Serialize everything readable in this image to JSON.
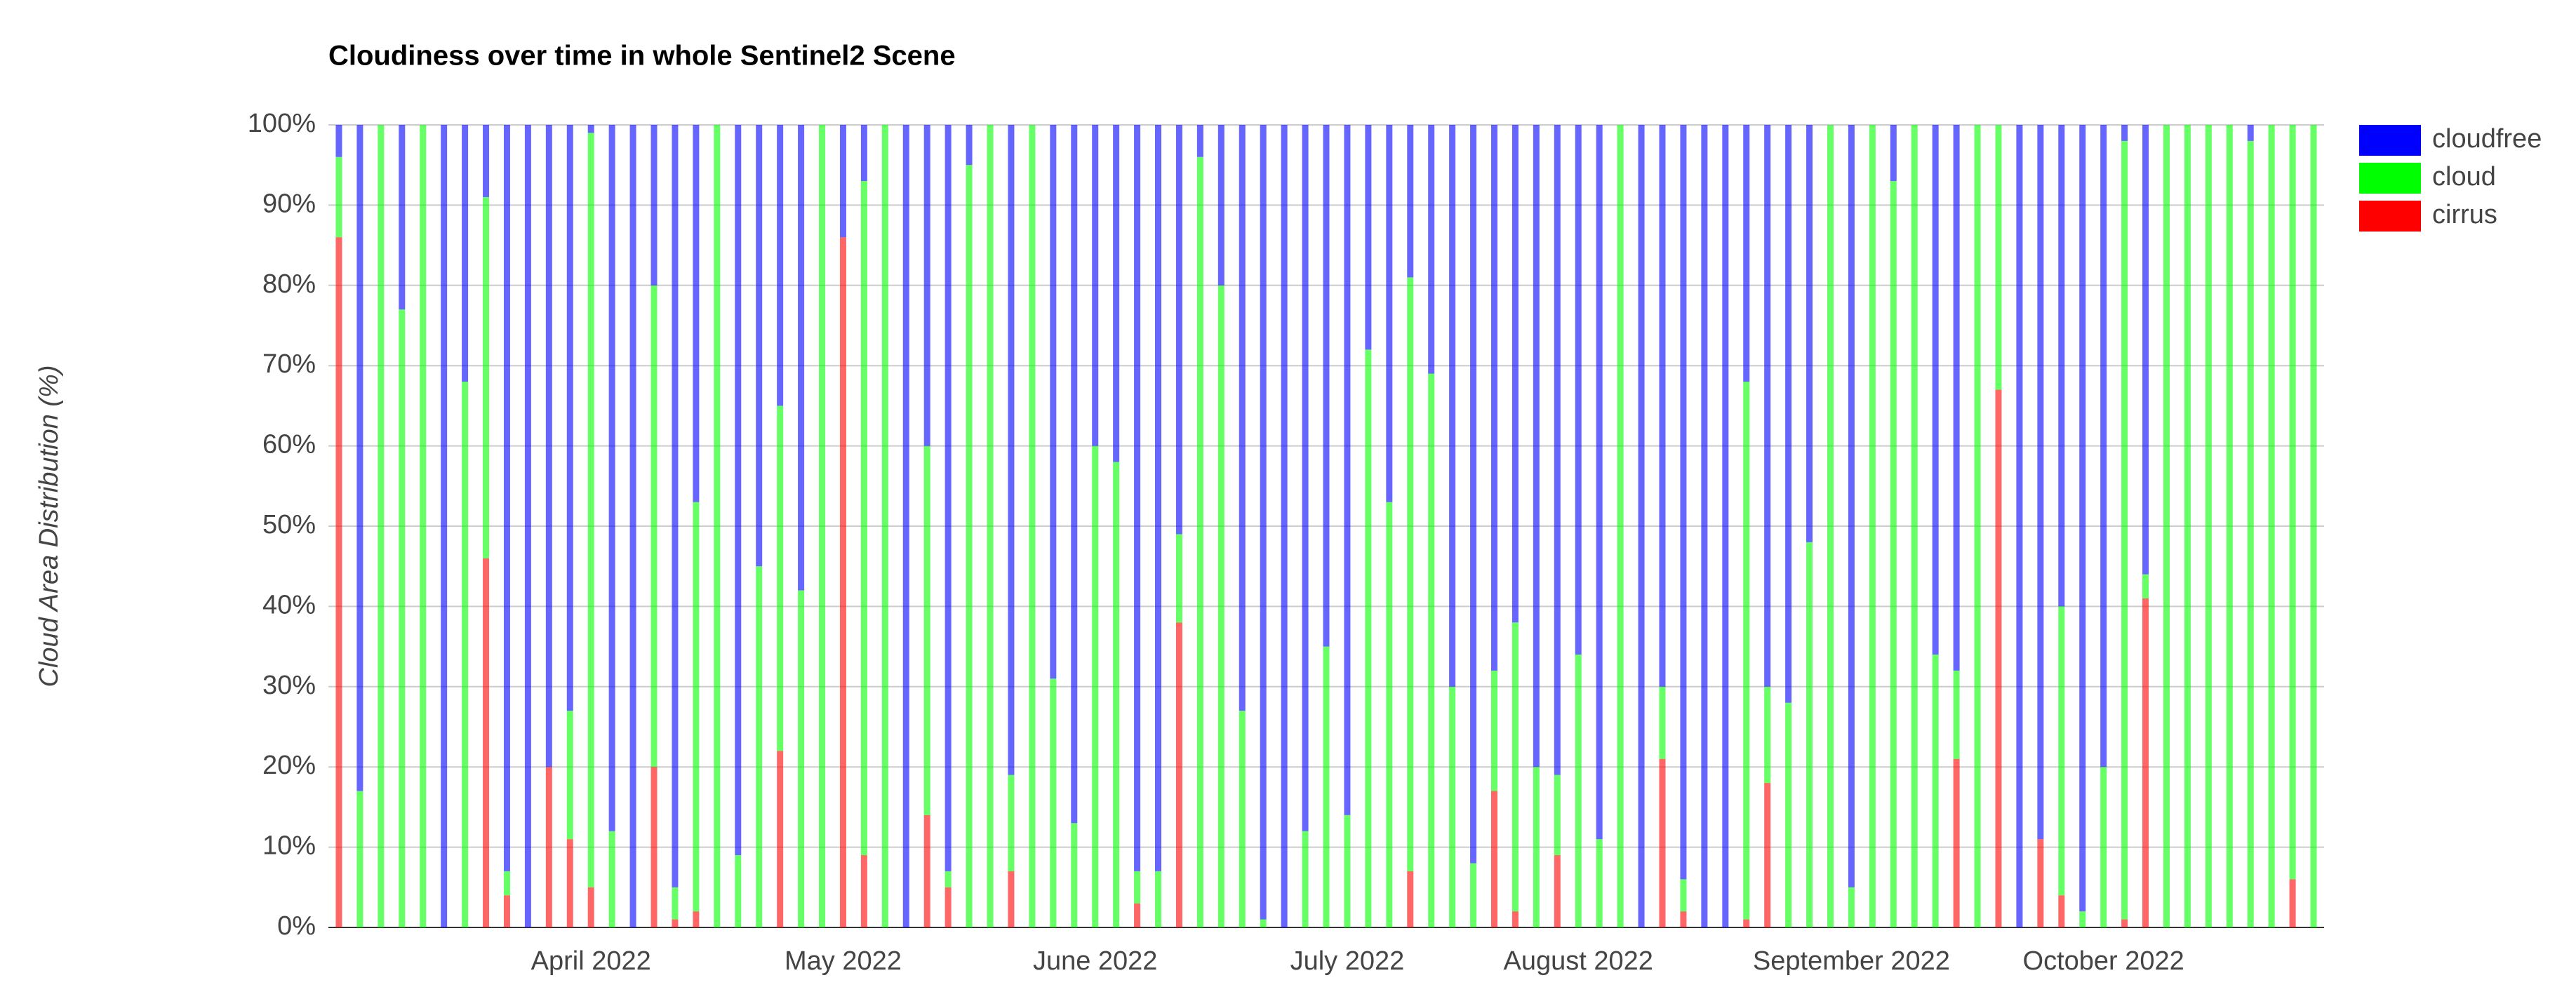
{
  "chart_data": {
    "type": "stacked_bar",
    "title": "Cloudiness over time in whole Sentinel2 Scene",
    "y_label": "Cloud Area Distribution (%)",
    "categories": [
      null,
      null,
      null,
      null,
      null,
      null,
      null,
      null,
      null,
      null,
      null,
      null,
      "April 2022",
      null,
      null,
      null,
      null,
      null,
      null,
      null,
      null,
      null,
      null,
      null,
      "May 2022",
      null,
      null,
      null,
      null,
      null,
      null,
      null,
      null,
      null,
      null,
      null,
      "June 2022",
      null,
      null,
      null,
      null,
      null,
      null,
      null,
      null,
      null,
      null,
      null,
      "July 2022",
      null,
      null,
      null,
      null,
      null,
      null,
      null,
      null,
      null,
      null,
      "August 2022",
      null,
      null,
      null,
      null,
      null,
      null,
      null,
      null,
      null,
      null,
      null,
      null,
      "September 2022",
      null,
      null,
      null,
      null,
      null,
      null,
      null,
      null,
      null,
      null,
      null,
      "October 2022",
      null,
      null,
      null,
      null,
      null,
      null,
      null,
      null,
      null,
      null
    ],
    "series": [
      {
        "name": "cloudfree",
        "color": "#0000ff",
        "values": [
          4,
          83,
          0,
          23,
          0,
          100,
          32,
          9,
          93,
          100,
          80,
          73,
          1,
          88,
          100,
          20,
          95,
          47,
          0,
          91,
          55,
          35,
          58,
          0,
          14,
          7,
          0,
          100,
          40,
          93,
          5,
          0,
          81,
          0,
          69,
          87,
          40,
          42,
          93,
          93,
          51,
          4,
          20,
          73,
          99,
          100,
          88,
          65,
          86,
          28,
          47,
          19,
          31,
          70,
          92,
          68,
          62,
          80,
          81,
          66,
          89,
          0,
          100,
          70,
          94,
          100,
          100,
          32,
          70,
          72,
          52,
          0,
          95,
          0,
          7,
          0,
          66,
          68,
          0,
          0,
          100,
          89,
          60,
          98,
          80,
          2,
          56,
          0,
          0,
          0,
          0,
          2,
          0,
          0,
          0
        ]
      },
      {
        "name": "cloud",
        "color": "#00ff00",
        "values": [
          10,
          17,
          100,
          77,
          100,
          0,
          68,
          45,
          3,
          0,
          0,
          16,
          94,
          12,
          0,
          60,
          4,
          51,
          100,
          9,
          45,
          43,
          42,
          100,
          0,
          84,
          100,
          0,
          46,
          2,
          95,
          100,
          12,
          100,
          31,
          13,
          60,
          58,
          4,
          7,
          11,
          96,
          80,
          27,
          1,
          0,
          12,
          35,
          14,
          72,
          53,
          74,
          69,
          30,
          8,
          15,
          36,
          20,
          10,
          34,
          11,
          100,
          0,
          9,
          4,
          0,
          0,
          67,
          12,
          28,
          48,
          100,
          5,
          100,
          93,
          100,
          34,
          11,
          100,
          33,
          0,
          0,
          36,
          2,
          20,
          97,
          3,
          100,
          100,
          100,
          100,
          98,
          100,
          94,
          100
        ]
      },
      {
        "name": "cirrus",
        "color": "#ff0000",
        "values": [
          86,
          0,
          0,
          0,
          0,
          0,
          0,
          46,
          4,
          0,
          20,
          11,
          5,
          0,
          0,
          20,
          1,
          2,
          0,
          0,
          0,
          22,
          0,
          0,
          86,
          9,
          0,
          0,
          14,
          5,
          0,
          0,
          7,
          0,
          0,
          0,
          0,
          0,
          3,
          0,
          38,
          0,
          0,
          0,
          0,
          0,
          0,
          0,
          0,
          0,
          0,
          7,
          0,
          0,
          0,
          17,
          2,
          0,
          9,
          0,
          0,
          0,
          0,
          21,
          2,
          0,
          0,
          1,
          18,
          0,
          0,
          0,
          0,
          0,
          0,
          0,
          0,
          21,
          0,
          67,
          0,
          11,
          4,
          0,
          0,
          1,
          41,
          0,
          0,
          0,
          0,
          0,
          0,
          6,
          0
        ]
      }
    ],
    "ylim": [
      0,
      100
    ],
    "yticks": [
      {
        "value": 0,
        "label": "0%"
      },
      {
        "value": 10,
        "label": "10%"
      },
      {
        "value": 20,
        "label": "20%"
      },
      {
        "value": 30,
        "label": "30%"
      },
      {
        "value": 40,
        "label": "40%"
      },
      {
        "value": 50,
        "label": "50%"
      },
      {
        "value": 60,
        "label": "60%"
      },
      {
        "value": 70,
        "label": "70%"
      },
      {
        "value": 80,
        "label": "80%"
      },
      {
        "value": 90,
        "label": "90%"
      },
      {
        "value": 100,
        "label": "100%"
      }
    ],
    "grid": true,
    "legend": "right"
  }
}
